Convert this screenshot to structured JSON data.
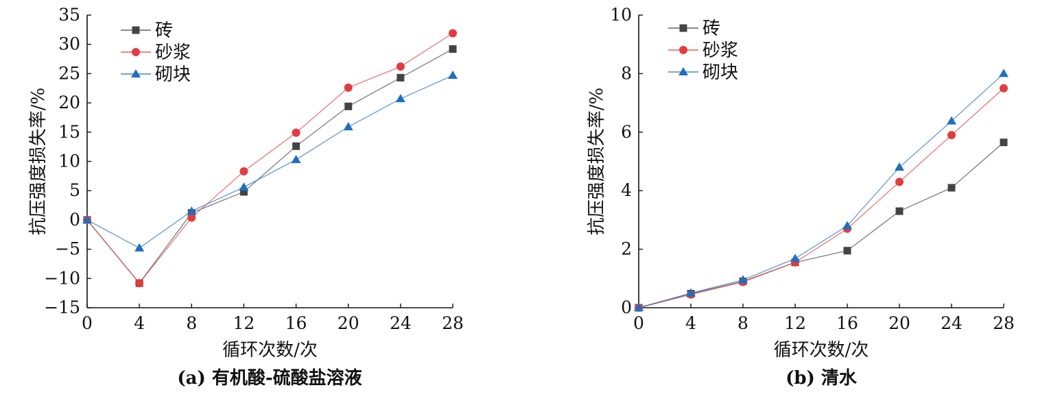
{
  "colors": {
    "砖": "#444444",
    "砂浆": "#e23c40",
    "砌块": "#1f6fbf"
  },
  "chart_data": [
    {
      "type": "line",
      "caption": "(a) 有机酸-硫酸盐溶液",
      "xlabel": "循环次数/次",
      "ylabel": "抗压强度损失率/%",
      "x": [
        0,
        4,
        8,
        12,
        16,
        20,
        24,
        28
      ],
      "xticks": [
        "0",
        "4",
        "8",
        "12",
        "16",
        "20",
        "24",
        "28"
      ],
      "xlim": [
        0,
        28
      ],
      "ylim": [
        -15,
        35
      ],
      "yticks": [
        "−15",
        "−10",
        "−5",
        "0",
        "5",
        "10",
        "15",
        "20",
        "25",
        "30",
        "35"
      ],
      "legend_position": "top-left",
      "grid": false,
      "series": [
        {
          "name": "砖",
          "marker": "square",
          "values": [
            0,
            -10.8,
            1.2,
            4.8,
            12.6,
            19.4,
            24.3,
            29.2
          ]
        },
        {
          "name": "砂浆",
          "marker": "circle",
          "values": [
            0,
            -10.8,
            0.4,
            8.3,
            14.9,
            22.6,
            26.2,
            31.9
          ]
        },
        {
          "name": "砌块",
          "marker": "triangle",
          "values": [
            0,
            -4.8,
            1.5,
            5.6,
            10.3,
            15.9,
            20.7,
            24.7
          ]
        }
      ]
    },
    {
      "type": "line",
      "caption": "(b) 清水",
      "xlabel": "循环次数/次",
      "ylabel": "抗压强度损失率/%",
      "x": [
        0,
        4,
        8,
        12,
        16,
        20,
        24,
        28
      ],
      "xticks": [
        "0",
        "4",
        "8",
        "12",
        "16",
        "20",
        "24",
        "28"
      ],
      "xlim": [
        0,
        28
      ],
      "ylim": [
        0,
        10
      ],
      "yticks": [
        "0",
        "2",
        "4",
        "6",
        "8",
        "10"
      ],
      "legend_position": "top-left",
      "grid": false,
      "series": [
        {
          "name": "砖",
          "marker": "square",
          "values": [
            0,
            0.48,
            0.9,
            1.55,
            1.95,
            3.3,
            4.1,
            5.65
          ]
        },
        {
          "name": "砂浆",
          "marker": "circle",
          "values": [
            0,
            0.45,
            0.88,
            1.55,
            2.7,
            4.3,
            5.9,
            7.5
          ]
        },
        {
          "name": "砌块",
          "marker": "triangle",
          "values": [
            0,
            0.5,
            0.95,
            1.68,
            2.8,
            4.8,
            6.38,
            8.0
          ]
        }
      ]
    }
  ]
}
